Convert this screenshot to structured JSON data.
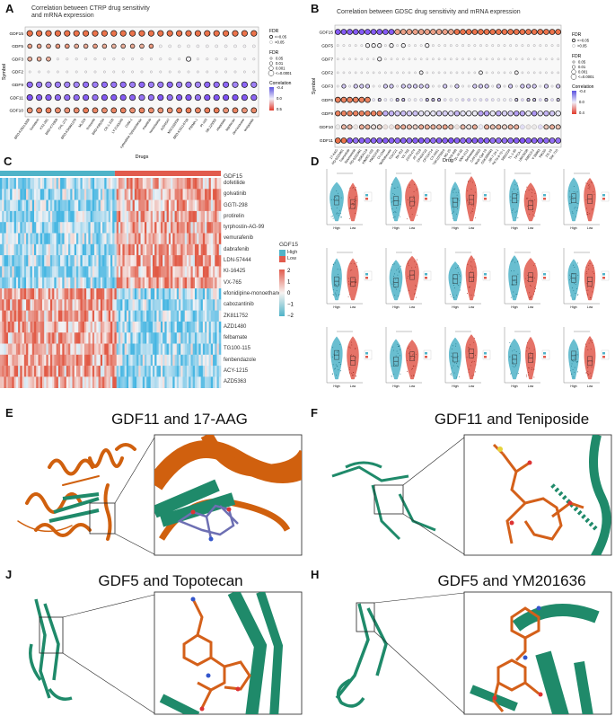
{
  "panels": {
    "A": {
      "label": "A",
      "title_line1": "Correlation between CTRP drug sensitivity",
      "title_line2": "and mRNA expression",
      "y_axis_label": "Symbol",
      "x_axis_label": "Drugs",
      "genes": [
        "GDF15",
        "GDF5",
        "GDF3",
        "GDF2",
        "GDF9",
        "GDF11",
        "GDF10"
      ],
      "drugs": [
        "BRD-K29313308",
        "Genistein",
        "KX2-391",
        "BRD-K74909",
        "CHL-273",
        "BRD-K94991378",
        "ML320",
        "tivozanib",
        "BRD-K90256",
        "CR-1-31B",
        "LY-2183240",
        "CHM-1",
        "cytarabine hydrochloride",
        "masitinib",
        "narciclasine",
        "AZD4547",
        "NSC632839",
        "BRD-K55116708",
        "PRIMA-1",
        "PI-103",
        "SB-225002",
        "etoposide",
        "topotecan",
        "dexrazoxane",
        "teniposide"
      ],
      "legend": {
        "fdr_title": "FDR",
        "sig_le": "<=0.05",
        "sig_gt": ">0.05",
        "fdr_size_title": "FDR",
        "fdr_sizes": [
          "0.05",
          "0.01",
          "0.001",
          "<=0.0001"
        ],
        "corr_title": "Correlation",
        "corr_ticks": [
          "-0.4",
          "0.0",
          "0.5"
        ]
      }
    },
    "B": {
      "label": "B",
      "title": "Correlation between GDSC drug sensitivity and mRNA expression",
      "y_axis_label": "Symbol",
      "x_axis_label": "Drug",
      "genes": [
        "GDF15",
        "GDF5",
        "GDF7",
        "GDF2",
        "GDF3",
        "GDF6",
        "GDF9",
        "GDF10",
        "GDF11"
      ],
      "drugs": [
        "17-AAG",
        "PD-0325901",
        "Trametinib",
        "Selumetinib",
        "PD-0332991",
        "RDEA119",
        "KIN001-102",
        "YM201636",
        "CI-1040",
        "Methotrexate",
        "TGX221",
        "BX-912",
        "VX-702",
        "ZSTK474",
        "AT-7519",
        "CP466722",
        "CP724714",
        "CX-5461",
        "GSK1070916",
        "NG-25",
        "OSI-930",
        "QL-XI-92",
        "SNX-2112",
        "Belinostat",
        "CAY10603",
        "Genentech Cpd 10",
        "GSK690693",
        "JW-7-24-1",
        "NPK76-II-72-1",
        "SB52334",
        "TL-1-85",
        "TPCA-1",
        "UNC0638",
        "XMD13-2",
        "Y-39983",
        "YM155",
        "ZG-10",
        "TAK-715"
      ],
      "legend": {
        "fdr_title": "FDR",
        "sig_le": "<=0.05",
        "sig_gt": ">0.05",
        "fdr_size_title": "FDR",
        "fdr_sizes": [
          "0.05",
          "0.01",
          "0.001",
          "<=0.0001"
        ],
        "corr_title": "Correlation",
        "corr_ticks": [
          "-0.4",
          "0.0",
          "0.4"
        ]
      }
    },
    "C": {
      "label": "C",
      "row_header": "GDF15",
      "drugs": [
        "dofetilide",
        "golvatinib",
        "GGTI-298",
        "protirelin",
        "tyrphostin-AG-99",
        "vemurafenib",
        "dabrafenib",
        "LDN-57444",
        "KI-16425",
        "VX-765",
        "efonidipine-monoethanol",
        "cabozantinib",
        "ZK811752",
        "AZD1480",
        "felbamate",
        "TG100-115",
        "fenbendazole",
        "ACY-1215",
        "AZD5363"
      ],
      "legend": {
        "group_title": "GDF15",
        "group_high": "High",
        "group_low": "Low",
        "scale_ticks": [
          "2",
          "1",
          "0",
          "−1",
          "−2"
        ]
      },
      "colors": {
        "high": "#4fb3c8",
        "low": "#e15b4d"
      }
    },
    "D": {
      "label": "D",
      "group_labels": [
        "High",
        "Low"
      ]
    },
    "E": {
      "label": "E",
      "title": "GDF11 and 17-AAG"
    },
    "F": {
      "label": "F",
      "title": "GDF11 and Teniposide"
    },
    "J": {
      "label": "J",
      "title": "GDF5 and Topotecan"
    },
    "H": {
      "label": "H",
      "title": "GDF5 and YM201636"
    }
  },
  "colors": {
    "protein_green": "#1f8a6a",
    "protein_orange": "#d0600e",
    "ligand_orange": "#d4601a",
    "ligand_purple": "#6d6fb3"
  }
}
